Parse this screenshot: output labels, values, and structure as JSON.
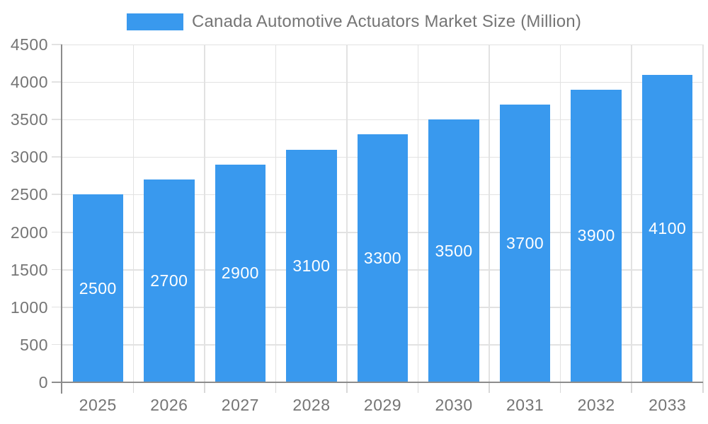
{
  "legend": {
    "label": "Canada Automotive Actuators Market Size (Million)"
  },
  "colors": {
    "bar": "#3999ee",
    "bar_label": "#ffffff",
    "text": "#757575",
    "axis": "#8c8c8c",
    "grid": "#e2e2e2",
    "tick": "#d9d9d9",
    "background": "#ffffff"
  },
  "chart_data": {
    "type": "bar",
    "title": "Canada Automotive Actuators Market Size (Million)",
    "categories": [
      "2025",
      "2026",
      "2027",
      "2028",
      "2029",
      "2030",
      "2031",
      "2032",
      "2033"
    ],
    "values": [
      2500,
      2700,
      2900,
      3100,
      3300,
      3500,
      3700,
      3900,
      4100
    ],
    "value_labels": [
      "2500",
      "2700",
      "2900",
      "3100",
      "3300",
      "3500",
      "3700",
      "3900",
      "4100"
    ],
    "xlabel": "",
    "ylabel": "",
    "ylim": [
      0,
      4500
    ],
    "ytick_step": 500,
    "ytick_labels": [
      "0",
      "500",
      "1000",
      "1500",
      "2000",
      "2500",
      "3000",
      "3500",
      "4000",
      "4500"
    ],
    "grid": true,
    "legend_position": "top-center",
    "bar_labels_inside": "centered"
  }
}
